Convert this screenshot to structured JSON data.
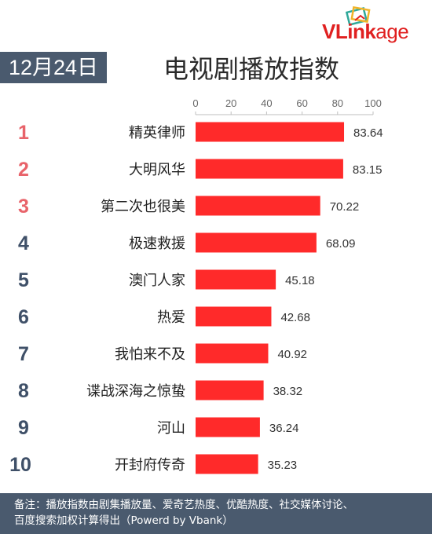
{
  "header": {
    "date": "12月24日",
    "title": "电视剧播放指数",
    "logo_text_main": "VLink",
    "logo_text_sub": "age"
  },
  "colors": {
    "bar": "#ff2a2a",
    "rank_top3": "#e8636a",
    "rank_rest": "#3f5068",
    "badge": "#4a5a6e"
  },
  "chart_data": {
    "type": "bar",
    "orientation": "horizontal",
    "xlim": [
      0,
      100
    ],
    "xticks": [
      "0",
      "20",
      "40",
      "60",
      "80",
      "100"
    ],
    "ranks": [
      "1",
      "2",
      "3",
      "4",
      "5",
      "6",
      "7",
      "8",
      "9",
      "10"
    ],
    "categories": [
      "精英律师",
      "大明风华",
      "第二次也很美",
      "极速救援",
      "澳门人家",
      "热爱",
      "我怕来不及",
      "谍战深海之惊蛰",
      "河山",
      "开封府传奇"
    ],
    "values": [
      83.64,
      83.15,
      70.22,
      68.09,
      45.18,
      42.68,
      40.92,
      38.32,
      36.24,
      35.23
    ],
    "value_labels": [
      "83.64",
      "83.15",
      "70.22",
      "68.09",
      "45.18",
      "42.68",
      "40.92",
      "38.32",
      "36.24",
      "35.23"
    ]
  },
  "footer": {
    "line1": "备注：播放指数由剧集播放量、爱奇艺热度、优酷热度、社交媒体讨论、",
    "line2": "百度搜索加权计算得出（Powerd by Vbank）"
  }
}
